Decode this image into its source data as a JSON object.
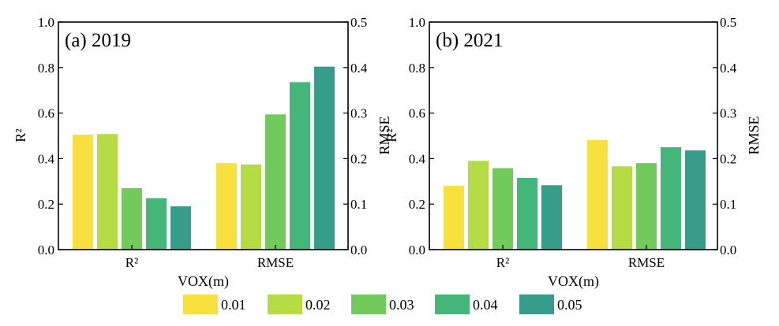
{
  "chart_data": [
    {
      "type": "bar",
      "title": "(a) 2019",
      "xlabel": "VOX(m)",
      "ylabel_left": "R²",
      "ylabel_right": "RMSE",
      "categories": [
        "R²",
        "RMSE"
      ],
      "ylim_left": [
        0,
        1.0
      ],
      "ylim_right": [
        0,
        0.5
      ],
      "yticks_left": [
        "0.0",
        "0.2",
        "0.4",
        "0.6",
        "0.8",
        "1.0"
      ],
      "yticks_right": [
        "0.0",
        "0.1",
        "0.2",
        "0.3",
        "0.4",
        "0.5"
      ],
      "grid": false,
      "series": [
        {
          "name": "0.01",
          "values": [
            0.505,
            0.19
          ]
        },
        {
          "name": "0.02",
          "values": [
            0.508,
            0.187
          ]
        },
        {
          "name": "0.03",
          "values": [
            0.27,
            0.297
          ]
        },
        {
          "name": "0.04",
          "values": [
            0.226,
            0.368
          ]
        },
        {
          "name": "0.05",
          "values": [
            0.19,
            0.402
          ]
        }
      ]
    },
    {
      "type": "bar",
      "title": "(b) 2021",
      "xlabel": "VOX(m)",
      "ylabel_left": "R²",
      "ylabel_right": "RMSE",
      "categories": [
        "R²",
        "RMSE"
      ],
      "ylim_left": [
        0,
        1.0
      ],
      "ylim_right": [
        0,
        0.5
      ],
      "yticks_left": [
        "0.0",
        "0.2",
        "0.4",
        "0.6",
        "0.8",
        "1.0"
      ],
      "yticks_right": [
        "0.0",
        "0.1",
        "0.2",
        "0.3",
        "0.4",
        "0.5"
      ],
      "grid": false,
      "series": [
        {
          "name": "0.01",
          "values": [
            0.28,
            0.241
          ]
        },
        {
          "name": "0.02",
          "values": [
            0.39,
            0.183
          ]
        },
        {
          "name": "0.03",
          "values": [
            0.358,
            0.19
          ]
        },
        {
          "name": "0.04",
          "values": [
            0.315,
            0.225
          ]
        },
        {
          "name": "0.05",
          "values": [
            0.283,
            0.218
          ]
        }
      ]
    }
  ],
  "legend": {
    "placement": "bottom",
    "items": [
      "0.01",
      "0.02",
      "0.03",
      "0.04",
      "0.05"
    ]
  },
  "colors": [
    "#f8e13e",
    "#b6dc45",
    "#72c95c",
    "#45b67a",
    "#359d88"
  ]
}
